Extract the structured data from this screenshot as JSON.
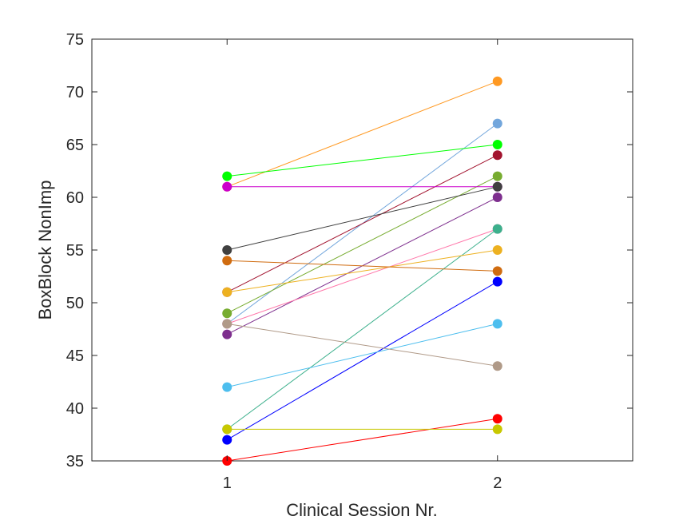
{
  "chart_data": {
    "type": "line",
    "xlabel": "Clinical Session Nr.",
    "ylabel": "BoxBlock NonImp",
    "x": [
      1,
      2
    ],
    "xlim": [
      0.5,
      2.5
    ],
    "ylim": [
      35,
      75
    ],
    "xticks": [
      1,
      2
    ],
    "yticks": [
      35,
      40,
      45,
      50,
      55,
      60,
      65,
      70,
      75
    ],
    "grid": false,
    "legend": "none",
    "series": [
      {
        "values": [
          61,
          71
        ],
        "color": "#ff9922"
      },
      {
        "values": [
          48,
          67
        ],
        "color": "#72a6dc"
      },
      {
        "values": [
          62,
          65
        ],
        "color": "#00ff00"
      },
      {
        "values": [
          51,
          64
        ],
        "color": "#a2142f"
      },
      {
        "values": [
          49,
          62
        ],
        "color": "#77ac30"
      },
      {
        "values": [
          61,
          61
        ],
        "color": "#cc00cc"
      },
      {
        "values": [
          55,
          61
        ],
        "color": "#404040"
      },
      {
        "values": [
          47,
          60
        ],
        "color": "#7e2f8e"
      },
      {
        "values": [
          48,
          57
        ],
        "color": "#ff77aa"
      },
      {
        "values": [
          38,
          57
        ],
        "color": "#3cb08c"
      },
      {
        "values": [
          51,
          55
        ],
        "color": "#edb120"
      },
      {
        "values": [
          54,
          53
        ],
        "color": "#d06c10"
      },
      {
        "values": [
          37,
          52
        ],
        "color": "#0000ff"
      },
      {
        "values": [
          42,
          48
        ],
        "color": "#4dbeee"
      },
      {
        "values": [
          48,
          44
        ],
        "color": "#b09a88"
      },
      {
        "values": [
          35,
          39
        ],
        "color": "#ff0000"
      },
      {
        "values": [
          38,
          38
        ],
        "color": "#c8c800"
      }
    ]
  }
}
